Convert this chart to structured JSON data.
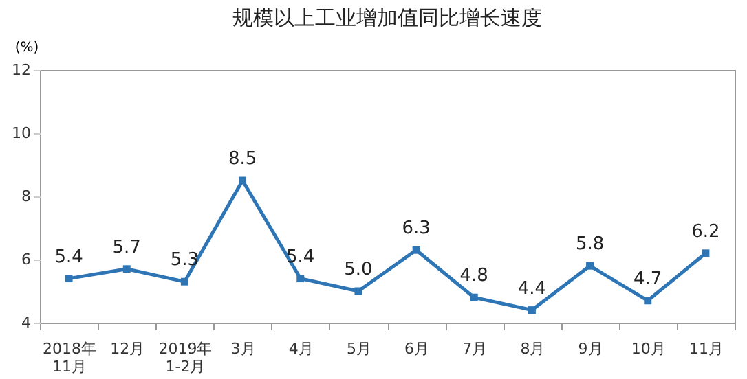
{
  "chart_data": {
    "type": "line",
    "title": "规模以上工业增加值同比增长速度",
    "ylabel": "(%)",
    "categories": [
      "2018年\n11月",
      "12月",
      "2019年\n1-2月",
      "3月",
      "4月",
      "5月",
      "6月",
      "7月",
      "8月",
      "9月",
      "10月",
      "11月"
    ],
    "series": [
      {
        "color": "#2e75b6",
        "values": [
          5.4,
          5.7,
          5.3,
          8.5,
          5.4,
          5.0,
          6.3,
          4.8,
          4.4,
          5.8,
          4.7,
          6.2
        ],
        "value_labels": [
          "5.4",
          "5.7",
          "5.3",
          "8.5",
          "5.4",
          "5.0",
          "6.3",
          "4.8",
          "4.4",
          "5.8",
          "4.7",
          "6.2"
        ]
      }
    ],
    "ylim": [
      4,
      12
    ],
    "yticks": [
      4,
      6,
      8,
      10,
      12
    ],
    "grid": false,
    "marker": "square",
    "line_style": "solid"
  }
}
